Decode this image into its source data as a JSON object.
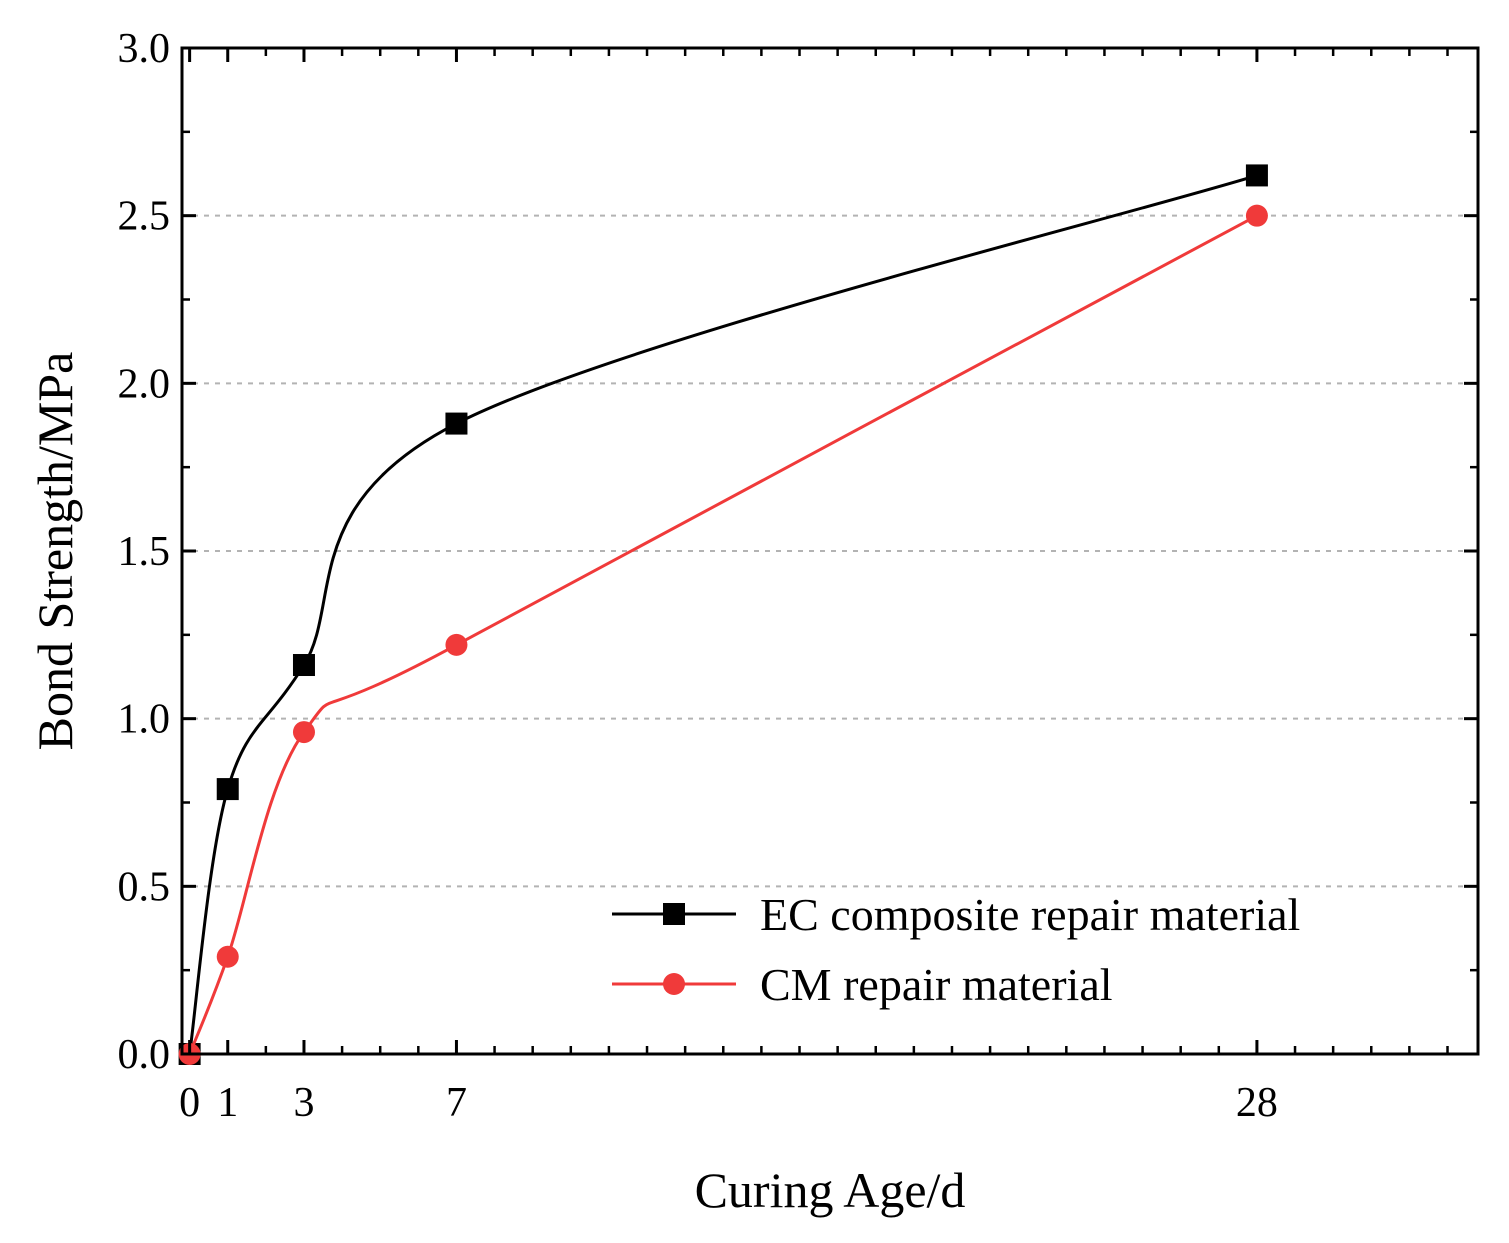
{
  "chart_data": {
    "type": "line",
    "title": "",
    "xlabel": "Curing Age/d",
    "ylabel": "Bond Strength/MPa",
    "xlim": [
      -0.2,
      33.8
    ],
    "ylim": [
      0.0,
      3.0
    ],
    "x_ticks": [
      0,
      1,
      3,
      7,
      28
    ],
    "x_minor_ticks": [
      2,
      4,
      5,
      6,
      8,
      9,
      10,
      11,
      12,
      13,
      14,
      15,
      16,
      17,
      18,
      19,
      20,
      21,
      22,
      23,
      24,
      25,
      26,
      27,
      29,
      30,
      31,
      32,
      33
    ],
    "y_ticks": [
      0.0,
      0.5,
      1.0,
      1.5,
      2.0,
      2.5,
      3.0
    ],
    "y_tick_labels": [
      "0.0",
      "0.5",
      "1.0",
      "1.5",
      "2.0",
      "2.5",
      "3.0"
    ],
    "y_gridlines": [
      0.5,
      1.0,
      1.5,
      2.0,
      2.5
    ],
    "grid": "horizontal dashed",
    "legend_position": "bottom-right",
    "series": [
      {
        "name": "EC composite repair material",
        "color": "#000000",
        "marker": "square",
        "x": [
          0,
          1,
          3,
          7,
          28
        ],
        "values": [
          0.0,
          0.79,
          1.16,
          1.88,
          2.62
        ]
      },
      {
        "name": "CM repair material",
        "color": "#f03a3a",
        "marker": "circle",
        "x": [
          0,
          1,
          3,
          7,
          28
        ],
        "values": [
          0.0,
          0.29,
          0.96,
          1.22,
          2.5
        ]
      }
    ]
  }
}
